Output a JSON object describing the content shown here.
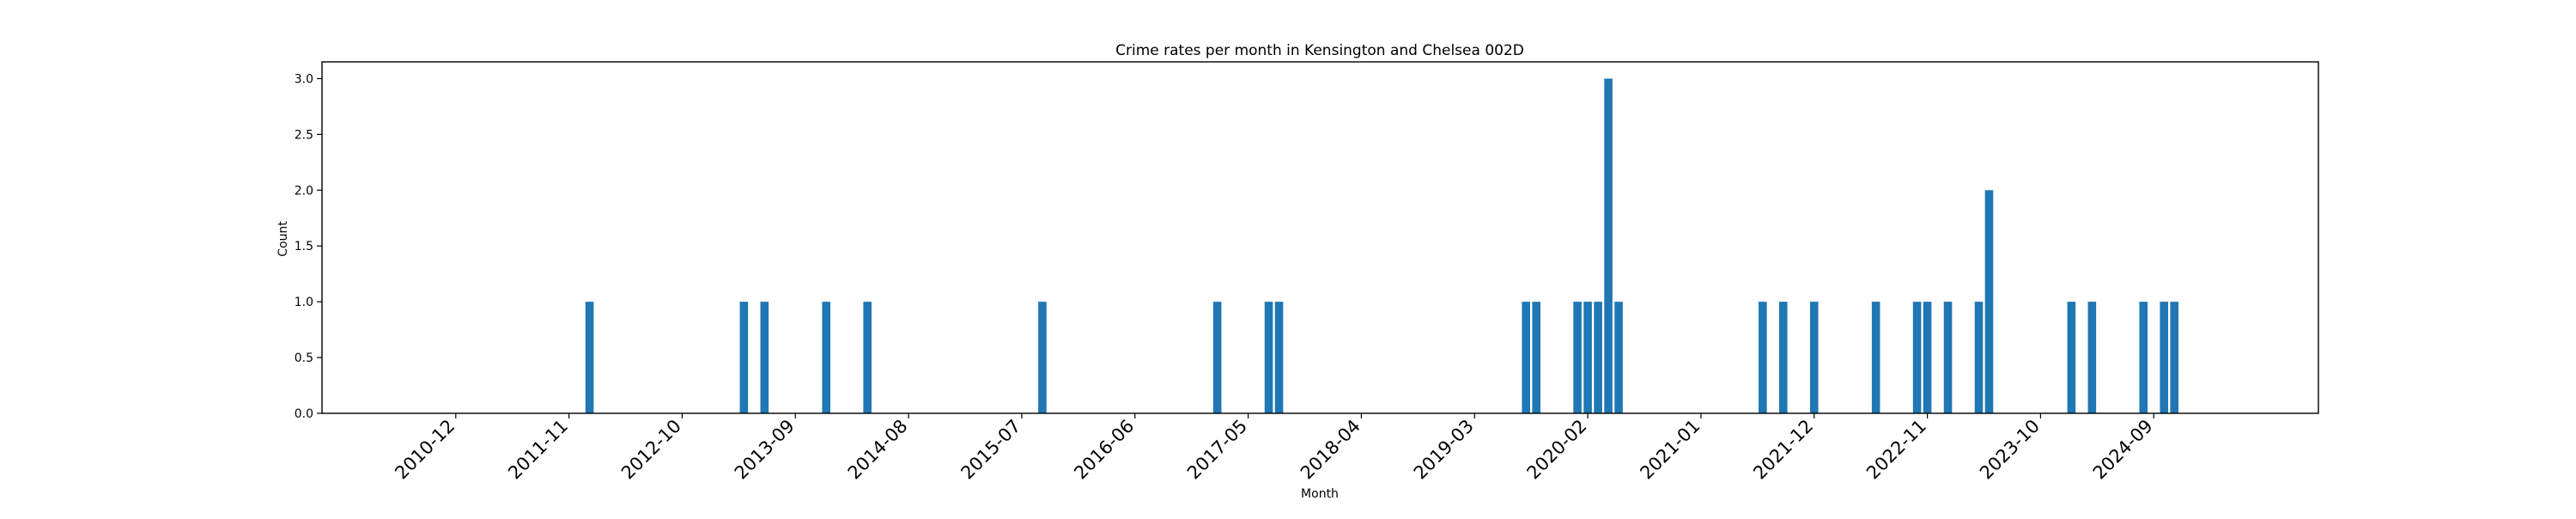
{
  "chart_data": {
    "type": "bar",
    "title": "Crime rates per month in Kensington and Chelsea 002D",
    "xlabel": "Month",
    "ylabel": "Count",
    "bar_color": "#1f77b4",
    "x_range": [
      "2009-11",
      "2026-01"
    ],
    "ylim": [
      0,
      3.15
    ],
    "y_ticks": [
      0.0,
      0.5,
      1.0,
      1.5,
      2.0,
      2.5,
      3.0
    ],
    "x_ticks": [
      "2010-12",
      "2011-11",
      "2012-10",
      "2013-09",
      "2014-08",
      "2015-07",
      "2016-06",
      "2017-05",
      "2018-04",
      "2019-03",
      "2020-02",
      "2021-01",
      "2021-12",
      "2022-11",
      "2023-10",
      "2024-09"
    ],
    "grid": false,
    "categories": [
      "2012-01",
      "2013-04",
      "2013-06",
      "2013-12",
      "2014-04",
      "2015-09",
      "2017-02",
      "2017-07",
      "2017-08",
      "2019-08",
      "2019-09",
      "2020-01",
      "2020-02",
      "2020-03",
      "2020-04",
      "2020-05",
      "2021-07",
      "2021-09",
      "2021-12",
      "2022-06",
      "2022-10",
      "2022-11",
      "2023-01",
      "2023-04",
      "2023-05",
      "2024-01",
      "2024-03",
      "2024-08",
      "2024-10",
      "2024-11"
    ],
    "values": [
      1,
      1,
      1,
      1,
      1,
      1,
      1,
      1,
      1,
      1,
      1,
      1,
      1,
      1,
      3,
      1,
      1,
      1,
      1,
      1,
      1,
      1,
      1,
      1,
      2,
      1,
      1,
      1,
      1,
      1
    ]
  }
}
